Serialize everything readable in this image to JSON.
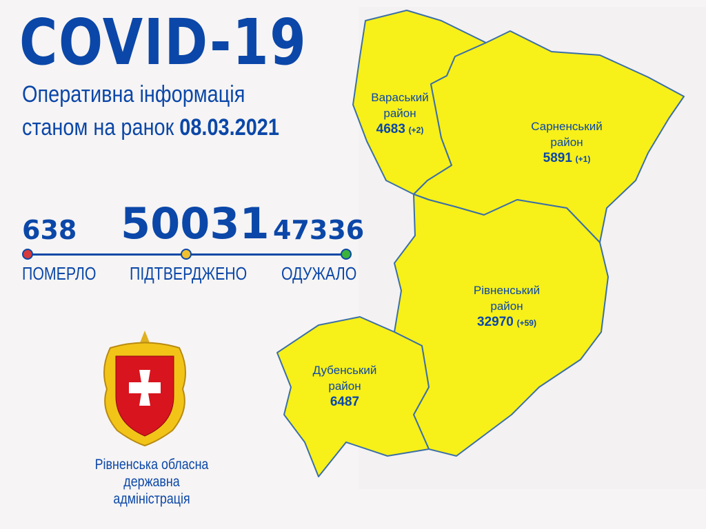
{
  "header": {
    "title": "COVID-19",
    "subtitle_line1": "Оперативна інформація",
    "subtitle_line2_prefix": "станом на ранок",
    "date": "08.03.2021"
  },
  "stats": {
    "died": {
      "value": "638",
      "label": "ПОМЕРЛО",
      "color": "#d63a3a"
    },
    "confirmed": {
      "value": "50031",
      "label": "ПІДТВЕРДЖЕНО",
      "color": "#f2c12e"
    },
    "recovered": {
      "value": "47336",
      "label": "ОДУЖАЛО",
      "color": "#3bb33b"
    }
  },
  "map": {
    "fill": "#f7f019",
    "border": "#3b6fa8",
    "districts": [
      {
        "name": "Вараський",
        "suffix": "район",
        "count": "4683",
        "delta": "(+2)"
      },
      {
        "name": "Сарненський",
        "suffix": "район",
        "count": "5891",
        "delta": "(+1)"
      },
      {
        "name": "Рівненський",
        "suffix": "район",
        "count": "32970",
        "delta": "(+59)"
      },
      {
        "name": "Дубенський",
        "suffix": "район",
        "count": "6487",
        "delta": ""
      }
    ]
  },
  "org": {
    "line1": "Рівненська обласна",
    "line2": "державна адміністрація"
  }
}
